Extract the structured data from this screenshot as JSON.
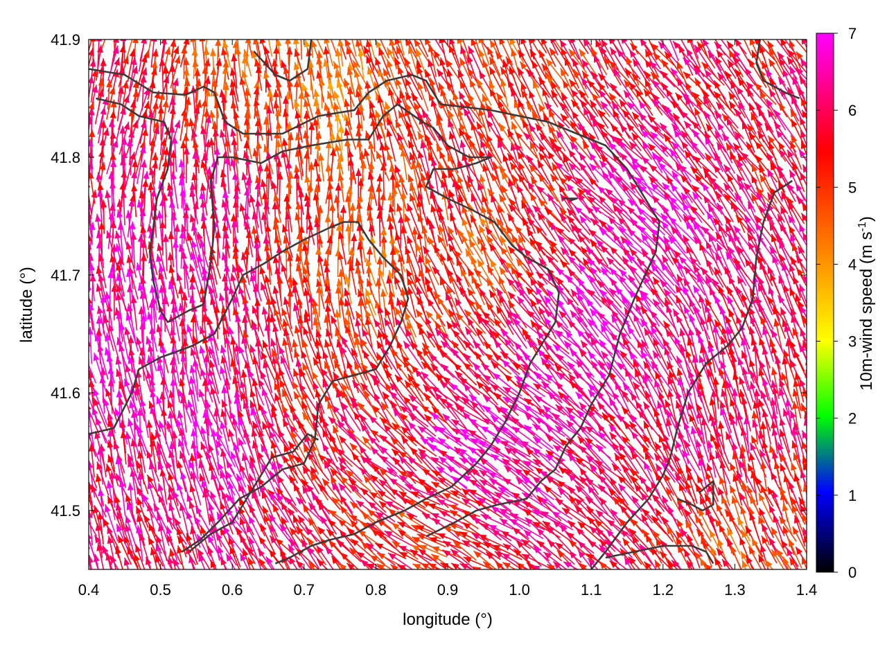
{
  "chart_data": {
    "type": "vector-field",
    "xlabel": "longitude (°)",
    "ylabel": "latitude (°)",
    "xlim": [
      0.4,
      1.4
    ],
    "ylim": [
      41.45,
      41.9
    ],
    "xticks": [
      "0.4",
      "0.5",
      "0.6",
      "0.7",
      "0.8",
      "0.9",
      "1.0",
      "1.1",
      "1.2",
      "1.3",
      "1.4"
    ],
    "yticks": [
      "41.5",
      "41.6",
      "41.7",
      "41.8",
      "41.9"
    ],
    "colorbar": {
      "label_main": "10m-wind speed (m s",
      "label_sup": "-1",
      "label_end": ")",
      "range": [
        0,
        7
      ],
      "ticks": [
        "0",
        "1",
        "2",
        "3",
        "4",
        "5",
        "6",
        "7"
      ],
      "colors": [
        "#000000",
        "#0000ff",
        "#00ff00",
        "#ffff00",
        "#ff8000",
        "#ff0000",
        "#ff00ff"
      ]
    },
    "speed_zones": [
      {
        "lon": 0.45,
        "lat": 41.65,
        "speed": 6.8
      },
      {
        "lon": 0.55,
        "lat": 41.75,
        "speed": 6.6
      },
      {
        "lon": 0.6,
        "lat": 41.55,
        "speed": 6.7
      },
      {
        "lon": 0.75,
        "lat": 41.85,
        "speed": 4.2
      },
      {
        "lon": 0.78,
        "lat": 41.7,
        "speed": 4.5
      },
      {
        "lon": 0.72,
        "lat": 41.58,
        "speed": 5.3
      },
      {
        "lon": 0.9,
        "lat": 41.8,
        "speed": 5.5
      },
      {
        "lon": 0.95,
        "lat": 41.72,
        "speed": 4.6
      },
      {
        "lon": 0.95,
        "lat": 41.55,
        "speed": 7.0
      },
      {
        "lon": 1.1,
        "lat": 41.65,
        "speed": 7.0
      },
      {
        "lon": 1.2,
        "lat": 41.75,
        "speed": 6.9
      },
      {
        "lon": 1.25,
        "lat": 41.55,
        "speed": 6.2
      },
      {
        "lon": 1.33,
        "lat": 41.8,
        "speed": 5.6
      },
      {
        "lon": 1.3,
        "lat": 41.48,
        "speed": 4.8
      },
      {
        "lon": 0.88,
        "lat": 41.47,
        "speed": 5.0
      },
      {
        "lon": 0.6,
        "lat": 41.88,
        "speed": 4.8
      },
      {
        "lon": 1.0,
        "lat": 41.88,
        "speed": 5.0
      }
    ],
    "flow_zones": [
      {
        "lon": 0.5,
        "lat": 41.65,
        "u": -0.15,
        "v": 1.0
      },
      {
        "lon": 0.75,
        "lat": 41.75,
        "u": 0.05,
        "v": 1.0
      },
      {
        "lon": 1.0,
        "lat": 41.55,
        "u": -0.85,
        "v": 0.55
      },
      {
        "lon": 1.15,
        "lat": 41.75,
        "u": -0.7,
        "v": 0.7
      },
      {
        "lon": 1.3,
        "lat": 41.6,
        "u": -0.2,
        "v": 1.0
      },
      {
        "lon": 0.9,
        "lat": 41.47,
        "u": -0.9,
        "v": 0.45
      },
      {
        "lon": 0.9,
        "lat": 41.85,
        "u": -0.4,
        "v": 0.9
      },
      {
        "lon": 0.45,
        "lat": 41.85,
        "u": 0.2,
        "v": 1.0
      }
    ],
    "boundaries": [
      [
        [
          0.4,
          41.875
        ],
        [
          0.45,
          41.87
        ],
        [
          0.49,
          41.855
        ],
        [
          0.535,
          41.853
        ],
        [
          0.56,
          41.86
        ],
        [
          0.575,
          41.855
        ],
        [
          0.59,
          41.83
        ],
        [
          0.615,
          41.82
        ],
        [
          0.67,
          41.82
        ],
        [
          0.72,
          41.835
        ],
        [
          0.77,
          41.84
        ],
        [
          0.79,
          41.855
        ],
        [
          0.815,
          41.865
        ],
        [
          0.85,
          41.87
        ],
        [
          0.87,
          41.865
        ],
        [
          0.89,
          41.845
        ],
        [
          0.96,
          41.84
        ],
        [
          1.0,
          41.835
        ],
        [
          1.04,
          41.83
        ],
        [
          1.08,
          41.82
        ],
        [
          1.12,
          41.81
        ],
        [
          1.15,
          41.79
        ],
        [
          1.18,
          41.76
        ],
        [
          1.195,
          41.745
        ],
        [
          1.19,
          41.72
        ],
        [
          1.175,
          41.7
        ],
        [
          1.16,
          41.68
        ],
        [
          1.14,
          41.65
        ],
        [
          1.125,
          41.615
        ],
        [
          1.1,
          41.59
        ],
        [
          1.085,
          41.57
        ],
        [
          1.065,
          41.555
        ],
        [
          1.05,
          41.535
        ],
        [
          1.03,
          41.525
        ],
        [
          1.01,
          41.51
        ],
        [
          0.97,
          41.505
        ],
        [
          0.94,
          41.5
        ],
        [
          0.91,
          41.49
        ],
        [
          0.87,
          41.478
        ]
      ],
      [
        [
          0.41,
          41.85
        ],
        [
          0.445,
          41.845
        ],
        [
          0.47,
          41.835
        ],
        [
          0.505,
          41.83
        ],
        [
          0.515,
          41.815
        ],
        [
          0.51,
          41.79
        ],
        [
          0.495,
          41.765
        ],
        [
          0.49,
          41.74
        ],
        [
          0.485,
          41.72
        ],
        [
          0.49,
          41.695
        ],
        [
          0.5,
          41.67
        ],
        [
          0.51,
          41.66
        ],
        [
          0.54,
          41.67
        ],
        [
          0.56,
          41.675
        ],
        [
          0.57,
          41.71
        ],
        [
          0.575,
          41.74
        ],
        [
          0.57,
          41.78
        ],
        [
          0.58,
          41.8
        ],
        [
          0.6,
          41.8
        ],
        [
          0.64,
          41.795
        ],
        [
          0.67,
          41.805
        ],
        [
          0.71,
          41.81
        ],
        [
          0.76,
          41.815
        ],
        [
          0.79,
          41.815
        ],
        [
          0.81,
          41.835
        ],
        [
          0.83,
          41.845
        ],
        [
          0.865,
          41.83
        ],
        [
          0.88,
          41.825
        ],
        [
          0.9,
          41.81
        ],
        [
          0.93,
          41.8
        ],
        [
          0.96,
          41.8
        ],
        [
          0.94,
          41.795
        ],
        [
          0.91,
          41.79
        ],
        [
          0.88,
          41.79
        ],
        [
          0.87,
          41.775
        ],
        [
          0.9,
          41.765
        ],
        [
          0.935,
          41.755
        ],
        [
          0.965,
          41.745
        ],
        [
          0.99,
          41.725
        ],
        [
          1.01,
          41.715
        ],
        [
          1.04,
          41.705
        ],
        [
          1.055,
          41.685
        ],
        [
          1.05,
          41.66
        ],
        [
          1.03,
          41.64
        ],
        [
          1.015,
          41.625
        ],
        [
          1.0,
          41.6
        ],
        [
          0.98,
          41.575
        ],
        [
          0.96,
          41.555
        ],
        [
          0.94,
          41.54
        ],
        [
          0.905,
          41.52
        ],
        [
          0.87,
          41.51
        ],
        [
          0.84,
          41.5
        ],
        [
          0.8,
          41.49
        ],
        [
          0.77,
          41.48
        ],
        [
          0.735,
          41.475
        ],
        [
          0.71,
          41.47
        ],
        [
          0.68,
          41.46
        ],
        [
          0.66,
          41.455
        ]
      ],
      [
        [
          0.4,
          41.565
        ],
        [
          0.435,
          41.57
        ],
        [
          0.46,
          41.6
        ],
        [
          0.47,
          41.62
        ],
        [
          0.5,
          41.63
        ],
        [
          0.545,
          41.64
        ],
        [
          0.575,
          41.65
        ],
        [
          0.6,
          41.68
        ],
        [
          0.615,
          41.7
        ],
        [
          0.645,
          41.71
        ],
        [
          0.67,
          41.72
        ],
        [
          0.7,
          41.73
        ],
        [
          0.735,
          41.74
        ],
        [
          0.755,
          41.745
        ],
        [
          0.775,
          41.745
        ],
        [
          0.79,
          41.73
        ],
        [
          0.81,
          41.715
        ],
        [
          0.835,
          41.7
        ],
        [
          0.845,
          41.68
        ],
        [
          0.835,
          41.66
        ],
        [
          0.82,
          41.64
        ],
        [
          0.8,
          41.62
        ],
        [
          0.77,
          41.615
        ],
        [
          0.74,
          41.61
        ],
        [
          0.72,
          41.59
        ],
        [
          0.715,
          41.56
        ],
        [
          0.7,
          41.54
        ],
        [
          0.67,
          41.535
        ],
        [
          0.64,
          41.52
        ],
        [
          0.61,
          41.51
        ],
        [
          0.58,
          41.49
        ],
        [
          0.555,
          41.475
        ],
        [
          0.53,
          41.465
        ]
      ],
      [
        [
          0.54,
          41.465
        ],
        [
          0.57,
          41.48
        ],
        [
          0.6,
          41.49
        ],
        [
          0.615,
          41.505
        ],
        [
          0.63,
          41.52
        ],
        [
          0.655,
          41.545
        ],
        [
          0.685,
          41.55
        ],
        [
          0.705,
          41.565
        ],
        [
          0.72,
          41.56
        ]
      ],
      [
        [
          1.38,
          41.78
        ],
        [
          1.355,
          41.77
        ],
        [
          1.34,
          41.745
        ],
        [
          1.33,
          41.715
        ],
        [
          1.325,
          41.68
        ],
        [
          1.31,
          41.655
        ],
        [
          1.29,
          41.64
        ],
        [
          1.26,
          41.625
        ],
        [
          1.235,
          41.6
        ],
        [
          1.22,
          41.57
        ],
        [
          1.21,
          41.545
        ],
        [
          1.2,
          41.53
        ],
        [
          1.18,
          41.51
        ],
        [
          1.15,
          41.49
        ],
        [
          1.12,
          41.465
        ],
        [
          1.1,
          41.45
        ]
      ],
      [
        [
          1.12,
          41.46
        ],
        [
          1.16,
          41.465
        ],
        [
          1.2,
          41.47
        ],
        [
          1.24,
          41.47
        ],
        [
          1.26,
          41.465
        ],
        [
          1.27,
          41.455
        ]
      ],
      [
        [
          1.22,
          41.51
        ],
        [
          1.24,
          41.505
        ],
        [
          1.255,
          41.5
        ],
        [
          1.27,
          41.505
        ],
        [
          1.27,
          41.525
        ],
        [
          1.26,
          41.52
        ],
        [
          1.25,
          41.515
        ]
      ],
      [
        [
          1.06,
          41.765
        ],
        [
          1.08,
          41.765
        ],
        [
          1.07,
          41.763
        ]
      ],
      [
        [
          0.63,
          41.89
        ],
        [
          0.66,
          41.87
        ],
        [
          0.68,
          41.865
        ],
        [
          0.705,
          41.875
        ],
        [
          0.71,
          41.9
        ]
      ],
      [
        [
          1.335,
          41.9
        ],
        [
          1.33,
          41.88
        ],
        [
          1.34,
          41.865
        ],
        [
          1.37,
          41.855
        ],
        [
          1.39,
          41.85
        ]
      ]
    ]
  }
}
